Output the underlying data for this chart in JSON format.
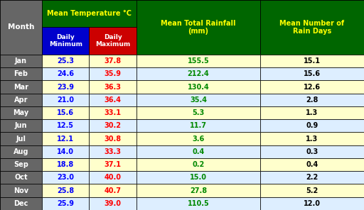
{
  "months": [
    "Jan",
    "Feb",
    "Mar",
    "Apr",
    "May",
    "Jun",
    "Jul",
    "Aug",
    "Sep",
    "Oct",
    "Nov",
    "Dec"
  ],
  "daily_min": [
    25.3,
    24.6,
    23.9,
    21.0,
    15.6,
    12.5,
    12.1,
    14.0,
    18.8,
    23.0,
    25.8,
    25.9
  ],
  "daily_max": [
    37.8,
    35.9,
    36.3,
    36.4,
    33.1,
    30.2,
    30.8,
    33.3,
    37.1,
    40.0,
    40.7,
    39.0
  ],
  "rainfall": [
    155.5,
    212.4,
    130.4,
    35.4,
    5.3,
    11.7,
    3.6,
    0.4,
    0.2,
    15.0,
    27.8,
    110.5
  ],
  "rain_days": [
    15.1,
    15.6,
    12.6,
    2.8,
    1.3,
    0.9,
    1.3,
    0.3,
    0.4,
    2.2,
    5.2,
    12.0
  ],
  "header_bg": "#006600",
  "subheader_min_bg": "#0000cc",
  "subheader_max_bg": "#cc0000",
  "row_odd_bg": "#ffffcc",
  "row_even_bg": "#ddeeff",
  "month_col_bg": "#666666",
  "month_text_color": "#ffffff",
  "min_text_color": "#0000ff",
  "max_text_color": "#ff0000",
  "rainfall_text_color": "#008800",
  "rain_days_text_color": "#000000",
  "header_text_color": "#ffff00",
  "subheader_text_color": "#ffffff",
  "border_color": "#000000",
  "title": "Mean Temperature °C"
}
